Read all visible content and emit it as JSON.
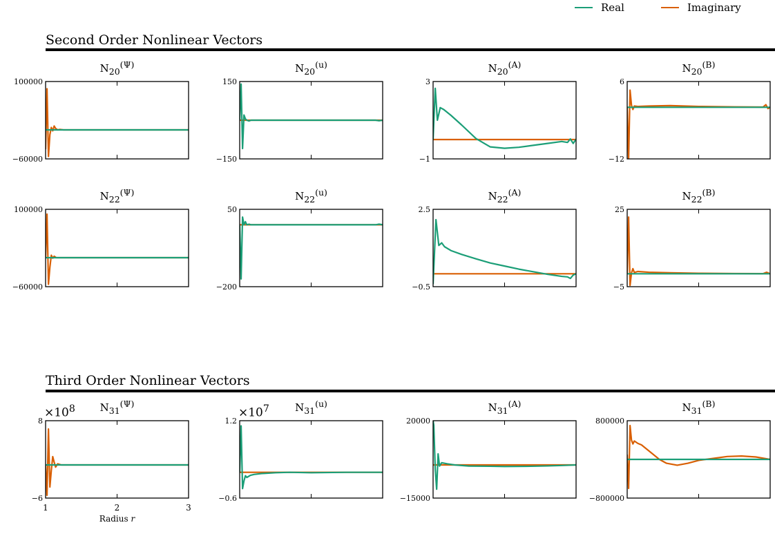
{
  "legend": {
    "real": {
      "label": "Real",
      "color": "#1b9e77"
    },
    "imag": {
      "label": "Imaginary",
      "color": "#d95f02"
    }
  },
  "sections": {
    "second": "Second Order Nonlinear Vectors",
    "third": "Third Order Nonlinear Vectors"
  },
  "xlabel_html": "Radius <i>r</i>",
  "x_ticks": [
    "1",
    "2",
    "3"
  ],
  "chart_data": [
    {
      "type": "line",
      "title_html": "N<sub>20</sub><sup>(Ψ)</sup>",
      "xlim": [
        1,
        3
      ],
      "ylim": [
        -60000,
        100000
      ],
      "ytick_labels": [
        "100000",
        "−60000"
      ],
      "series": [
        {
          "name": "Real",
          "x": [
            1,
            3
          ],
          "y": [
            0,
            0
          ]
        },
        {
          "name": "Imaginary",
          "x": [
            1.0,
            1.02,
            1.04,
            1.06,
            1.08,
            1.1,
            1.12,
            1.14,
            1.17,
            1.2,
            1.25,
            3.0
          ],
          "y": [
            -40000,
            85000,
            -55000,
            -10000,
            5000,
            -2000,
            8000,
            3000,
            0,
            1000,
            0,
            0
          ]
        }
      ]
    },
    {
      "type": "line",
      "title_html": "N<sub>20</sub><sup>(u)</sup>",
      "xlim": [
        1,
        3
      ],
      "ylim": [
        -150,
        150
      ],
      "ytick_labels": [
        "150",
        "−150"
      ],
      "series": [
        {
          "name": "Real",
          "x": [
            1.0,
            1.02,
            1.04,
            1.06,
            1.08,
            1.1,
            1.13,
            1.16,
            1.2,
            2.9,
            2.95,
            3.0
          ],
          "y": [
            0,
            140,
            -110,
            20,
            5,
            0,
            -3,
            0,
            0,
            0,
            -2,
            0
          ]
        },
        {
          "name": "Imaginary",
          "x": [
            1,
            3
          ],
          "y": [
            0,
            0
          ]
        }
      ]
    },
    {
      "type": "line",
      "title_html": "N<sub>20</sub><sup>(A)</sup>",
      "xlim": [
        1,
        3
      ],
      "ylim": [
        -1,
        3
      ],
      "ytick_labels": [
        "3",
        "−1"
      ],
      "series": [
        {
          "name": "Real",
          "x": [
            1.0,
            1.03,
            1.06,
            1.1,
            1.15,
            1.25,
            1.4,
            1.6,
            1.8,
            2.0,
            2.2,
            2.4,
            2.6,
            2.8,
            2.88,
            2.92,
            2.96,
            3.0
          ],
          "y": [
            0,
            2.65,
            1.0,
            1.65,
            1.55,
            1.25,
            0.75,
            0.05,
            -0.38,
            -0.45,
            -0.4,
            -0.3,
            -0.2,
            -0.1,
            -0.15,
            0.03,
            -0.2,
            0.02
          ]
        },
        {
          "name": "Imaginary",
          "x": [
            1,
            3
          ],
          "y": [
            0,
            0
          ]
        }
      ]
    },
    {
      "type": "line",
      "title_html": "N<sub>20</sub><sup>(B)</sup>",
      "xlim": [
        1,
        3
      ],
      "ylim": [
        -12,
        6
      ],
      "ytick_labels": [
        "6",
        "−12"
      ],
      "series": [
        {
          "name": "Real",
          "x": [
            1,
            3
          ],
          "y": [
            0,
            0
          ]
        },
        {
          "name": "Imaginary",
          "x": [
            1.0,
            1.02,
            1.04,
            1.06,
            1.08,
            1.1,
            1.15,
            1.3,
            1.6,
            2.0,
            2.5,
            2.9,
            2.94,
            2.97,
            3.0
          ],
          "y": [
            0,
            -12,
            4.0,
            0.5,
            -0.5,
            0.3,
            0.2,
            0.3,
            0.4,
            0.2,
            0.1,
            0.05,
            0.6,
            -0.3,
            0.0
          ]
        }
      ]
    },
    {
      "type": "line",
      "title_html": "N<sub>22</sub><sup>(Ψ)</sup>",
      "xlim": [
        1,
        3
      ],
      "ylim": [
        -60000,
        100000
      ],
      "ytick_labels": [
        "100000",
        "−60000"
      ],
      "series": [
        {
          "name": "Real",
          "x": [
            1,
            3
          ],
          "y": [
            0,
            0
          ]
        },
        {
          "name": "Imaginary",
          "x": [
            1.0,
            1.02,
            1.04,
            1.06,
            1.08,
            1.1,
            1.12,
            1.15,
            1.2,
            3.0
          ],
          "y": [
            0,
            90000,
            -55000,
            -20000,
            5000,
            -1000,
            3000,
            0,
            0,
            0
          ]
        }
      ]
    },
    {
      "type": "line",
      "title_html": "N<sub>22</sub><sup>(u)</sup>",
      "xlim": [
        1,
        3
      ],
      "ylim": [
        -200,
        50
      ],
      "ytick_labels": [
        "50",
        "−200"
      ],
      "series": [
        {
          "name": "Real",
          "x": [
            1.0,
            1.02,
            1.04,
            1.06,
            1.08,
            1.1,
            1.13,
            1.16,
            1.2,
            2.9,
            2.95,
            3.0
          ],
          "y": [
            0,
            -175,
            25,
            0,
            10,
            0,
            2,
            0,
            0,
            0,
            2,
            0
          ]
        },
        {
          "name": "Imaginary",
          "x": [
            1,
            3
          ],
          "y": [
            0,
            0
          ]
        }
      ]
    },
    {
      "type": "line",
      "title_html": "N<sub>22</sub><sup>(A)</sup>",
      "xlim": [
        1,
        3
      ],
      "ylim": [
        -0.5,
        2.5
      ],
      "ytick_labels": [
        "2.5",
        "−0.5"
      ],
      "series": [
        {
          "name": "Real",
          "x": [
            1.0,
            1.04,
            1.08,
            1.12,
            1.16,
            1.25,
            1.4,
            1.6,
            1.8,
            2.0,
            2.2,
            2.4,
            2.6,
            2.8,
            2.88,
            2.92,
            2.96,
            3.0
          ],
          "y": [
            -0.4,
            2.1,
            1.1,
            1.2,
            1.05,
            0.9,
            0.75,
            0.58,
            0.42,
            0.3,
            0.18,
            0.08,
            -0.02,
            -0.1,
            -0.12,
            -0.18,
            -0.05,
            0.0
          ]
        },
        {
          "name": "Imaginary",
          "x": [
            1,
            3
          ],
          "y": [
            0,
            0
          ]
        }
      ]
    },
    {
      "type": "line",
      "title_html": "N<sub>22</sub><sup>(B)</sup>",
      "xlim": [
        1,
        3
      ],
      "ylim": [
        -5,
        25
      ],
      "ytick_labels": [
        "25",
        "−5"
      ],
      "series": [
        {
          "name": "Real",
          "x": [
            1,
            3
          ],
          "y": [
            0,
            0
          ]
        },
        {
          "name": "Imaginary",
          "x": [
            1.0,
            1.02,
            1.04,
            1.06,
            1.08,
            1.1,
            1.15,
            1.3,
            1.6,
            2.0,
            2.5,
            2.9,
            2.95,
            3.0
          ],
          "y": [
            0,
            22,
            -4.5,
            0.3,
            2.0,
            0.5,
            0.9,
            0.6,
            0.4,
            0.2,
            0.1,
            0.05,
            0.6,
            0.0
          ]
        }
      ]
    },
    {
      "type": "line",
      "title_html": "N<sub>31</sub><sup>(Ψ)</sup>",
      "scale_label_html": "×10<sup>8</sup>",
      "xlim": [
        1,
        3
      ],
      "ylim": [
        -6,
        8
      ],
      "ytick_labels": [
        "8",
        "−6"
      ],
      "series": [
        {
          "name": "Real",
          "x": [
            1,
            3
          ],
          "y": [
            0,
            0
          ]
        },
        {
          "name": "Imaginary",
          "x": [
            1.0,
            1.02,
            1.04,
            1.06,
            1.08,
            1.1,
            1.12,
            1.14,
            1.17,
            1.22,
            3.0
          ],
          "y": [
            0,
            -5.5,
            6.5,
            -4.0,
            -1.0,
            1.5,
            0.5,
            -0.4,
            0.2,
            0,
            0
          ]
        }
      ]
    },
    {
      "type": "line",
      "title_html": "N<sub>31</sub><sup>(u)</sup>",
      "scale_label_html": "×10<sup>7</sup>",
      "xlim": [
        1,
        3
      ],
      "ylim": [
        -0.6,
        1.2
      ],
      "ytick_labels": [
        "1.2",
        "−0.6"
      ],
      "series": [
        {
          "name": "Real",
          "x": [
            1.0,
            1.02,
            1.04,
            1.06,
            1.08,
            1.1,
            1.15,
            1.2,
            1.3,
            1.5,
            1.7,
            2.0,
            2.5,
            3.0
          ],
          "y": [
            0,
            1.08,
            -0.38,
            -0.2,
            -0.08,
            -0.12,
            -0.07,
            -0.05,
            -0.03,
            -0.01,
            0.0,
            -0.01,
            0,
            0
          ]
        },
        {
          "name": "Imaginary",
          "x": [
            1,
            3
          ],
          "y": [
            0,
            0
          ]
        }
      ]
    },
    {
      "type": "line",
      "title_html": "N<sub>31</sub><sup>(A)</sup>",
      "xlim": [
        1,
        3
      ],
      "ylim": [
        -15000,
        20000
      ],
      "ytick_labels": [
        "20000",
        "−15000"
      ],
      "series": [
        {
          "name": "Real",
          "x": [
            1.0,
            1.01,
            1.03,
            1.05,
            1.07,
            1.09,
            1.12,
            1.15,
            1.2,
            1.3,
            1.5,
            1.8,
            2.0,
            2.3,
            2.6,
            2.8,
            3.0
          ],
          "y": [
            20000,
            18000,
            -2000,
            -11000,
            5000,
            -500,
            1000,
            800,
            500,
            0,
            -500,
            -600,
            -700,
            -650,
            -450,
            -250,
            0
          ]
        },
        {
          "name": "Imaginary",
          "x": [
            1,
            3
          ],
          "y": [
            0,
            0
          ]
        }
      ]
    },
    {
      "type": "line",
      "title_html": "N<sub>31</sub><sup>(B)</sup>",
      "xlim": [
        1,
        3
      ],
      "ylim": [
        -800000,
        800000
      ],
      "ytick_labels": [
        "800000",
        "−800000"
      ],
      "series": [
        {
          "name": "Real",
          "x": [
            1,
            3
          ],
          "y": [
            0,
            0
          ]
        },
        {
          "name": "Imaginary",
          "x": [
            1.0,
            1.02,
            1.04,
            1.06,
            1.08,
            1.1,
            1.15,
            1.2,
            1.3,
            1.45,
            1.55,
            1.7,
            1.85,
            2.0,
            2.2,
            2.4,
            2.6,
            2.8,
            3.0
          ],
          "y": [
            100000,
            -600000,
            700000,
            400000,
            320000,
            380000,
            330000,
            300000,
            180000,
            0,
            -80000,
            -120000,
            -80000,
            -20000,
            20000,
            60000,
            70000,
            50000,
            0
          ]
        }
      ]
    }
  ]
}
